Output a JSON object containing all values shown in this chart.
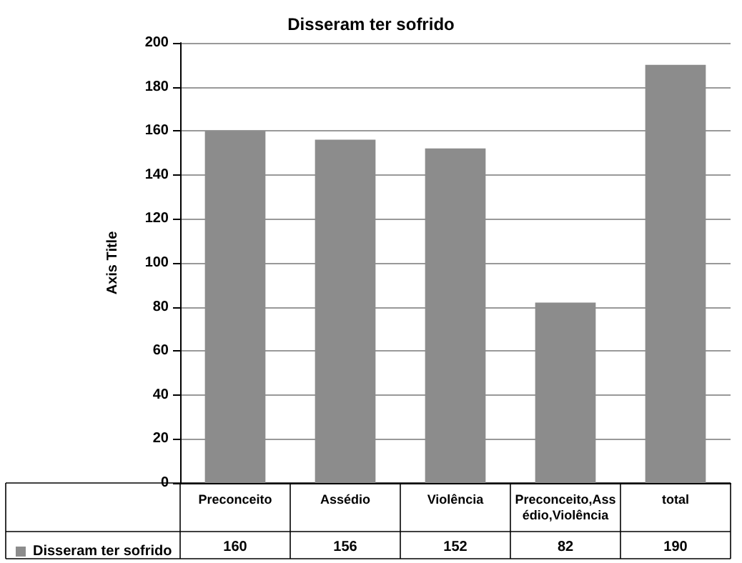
{
  "chart_data": {
    "type": "bar",
    "title": "Disseram ter sofrido",
    "ylabel": "Axis Title",
    "categories": [
      "Preconceito",
      "Assédio",
      "Violência",
      "Preconceito,Assédio,Violência",
      "total"
    ],
    "series": [
      {
        "name": "Disseram ter sofrido",
        "color": "#8c8c8c",
        "values": [
          160,
          156,
          152,
          82,
          190
        ]
      }
    ],
    "ylim": [
      0,
      200
    ],
    "yticks": [
      0,
      20,
      40,
      60,
      80,
      100,
      120,
      140,
      160,
      180,
      200
    ],
    "grid": "y",
    "legend": "bottom",
    "data_labels": true
  }
}
